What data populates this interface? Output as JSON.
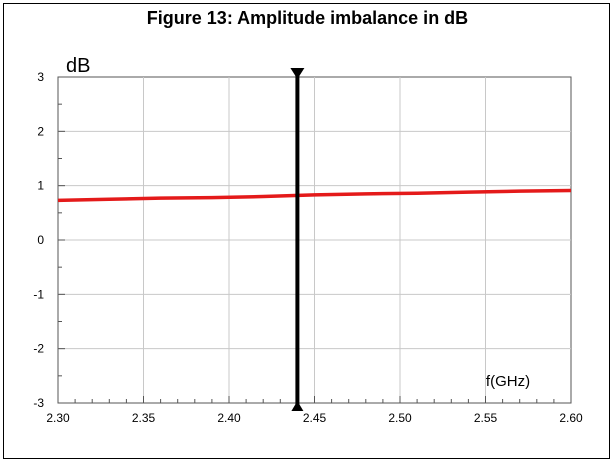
{
  "figure": {
    "title": "Figure 13: Amplitude imbalance in dB"
  },
  "chart_data": {
    "type": "line",
    "title": "Figure 13: Amplitude imbalance in dB",
    "ylabel": "dB",
    "xlabel": "f(GHz)",
    "xlim": [
      2.3,
      2.6
    ],
    "ylim": [
      -3,
      3
    ],
    "grid": true,
    "x_ticks": [
      "2.30",
      "2.35",
      "2.40",
      "2.45",
      "2.50",
      "2.55",
      "2.60"
    ],
    "y_ticks": [
      "3",
      "2",
      "1",
      "0",
      "-1",
      "-2",
      "-3"
    ],
    "x_tick_values": [
      2.3,
      2.35,
      2.4,
      2.45,
      2.5,
      2.55,
      2.6
    ],
    "y_tick_values": [
      3,
      2,
      1,
      0,
      -1,
      -2,
      -3
    ],
    "series": [
      {
        "color": "#e41a1a",
        "x": [
          2.3,
          2.33,
          2.36,
          2.39,
          2.42,
          2.45,
          2.48,
          2.51,
          2.54,
          2.57,
          2.6
        ],
        "y": [
          0.73,
          0.75,
          0.77,
          0.78,
          0.8,
          0.83,
          0.85,
          0.86,
          0.88,
          0.9,
          0.91
        ]
      }
    ],
    "marker": {
      "x": 2.44,
      "color": "#000000"
    }
  }
}
